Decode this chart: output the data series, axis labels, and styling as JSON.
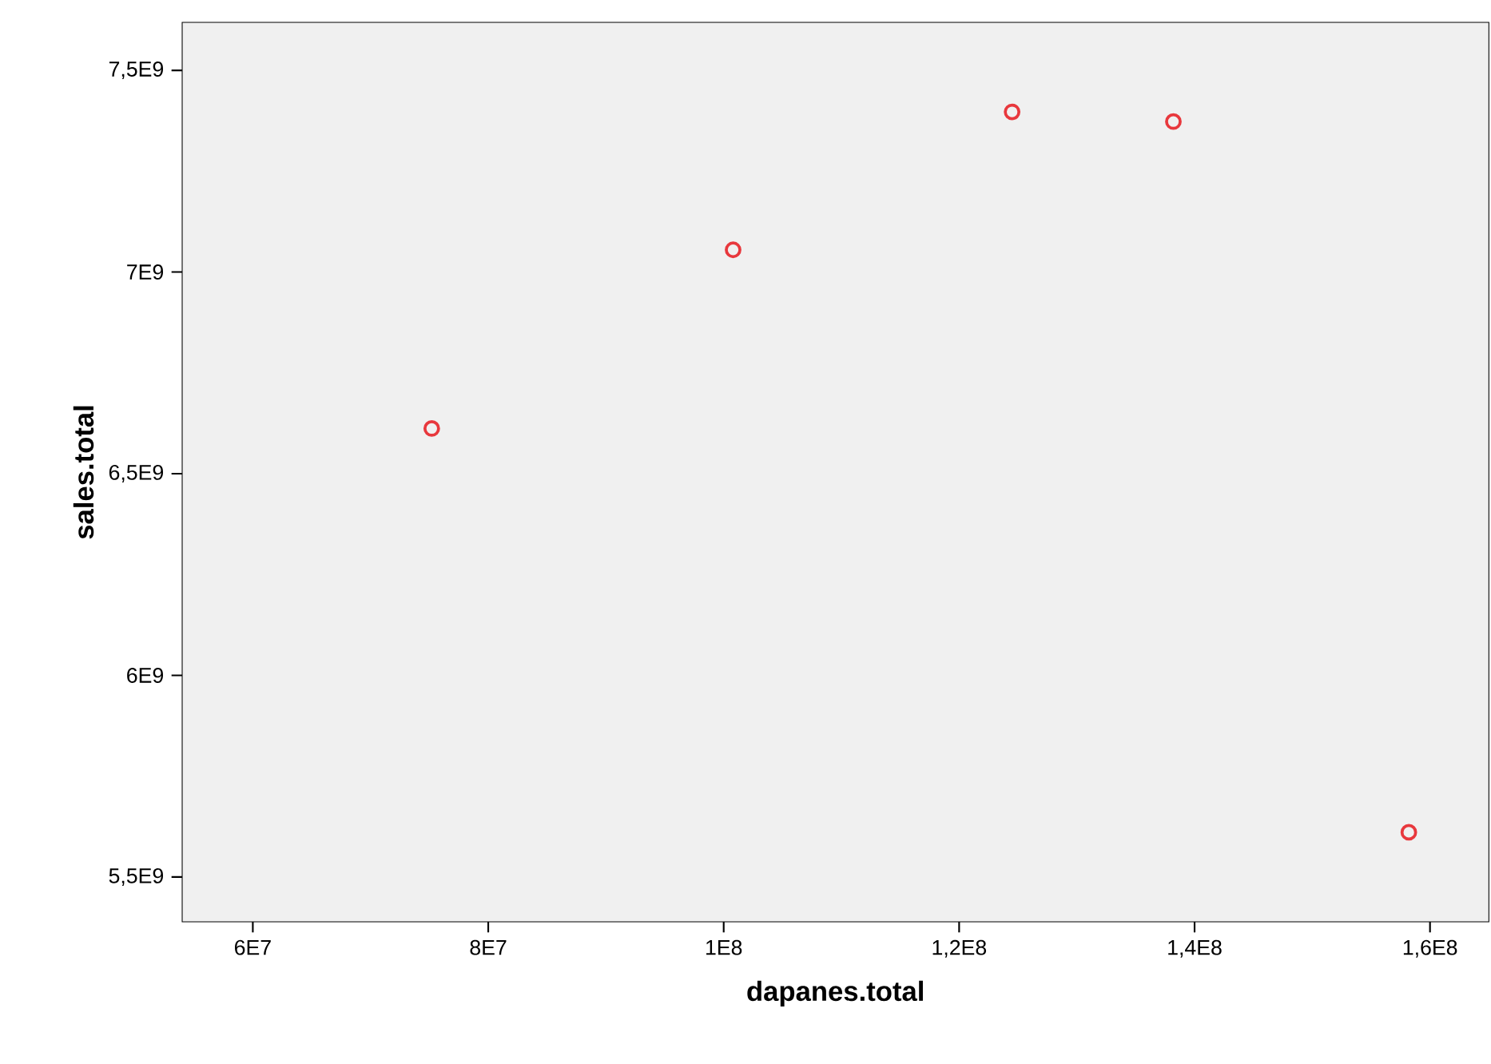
{
  "chart_data": {
    "type": "scatter",
    "xlabel": "dapanes.total",
    "ylabel": "sales.total",
    "marker": "circle",
    "x": [
      75200000,
      100800000,
      124500000,
      138200000,
      158200000
    ],
    "series": [
      {
        "color": "#e8383d",
        "values": [
          6612000000,
          7055000000,
          7397000000,
          7373000000,
          5611000000
        ]
      }
    ],
    "xlim": [
      54000000,
      165000000
    ],
    "ylim": [
      5389000000,
      7619000000
    ],
    "xticks": [
      {
        "value": 60000000,
        "label": "6E7"
      },
      {
        "value": 80000000,
        "label": "8E7"
      },
      {
        "value": 100000000,
        "label": "1E8"
      },
      {
        "value": 120000000,
        "label": "1,2E8"
      },
      {
        "value": 140000000,
        "label": "1,4E8"
      },
      {
        "value": 160000000,
        "label": "1,6E8"
      }
    ],
    "yticks": [
      {
        "value": 5500000000,
        "label": "5,5E9"
      },
      {
        "value": 6000000000,
        "label": "6E9"
      },
      {
        "value": 6500000000,
        "label": "6,5E9"
      },
      {
        "value": 7000000000,
        "label": "7E9"
      },
      {
        "value": 7500000000,
        "label": "7,5E9"
      }
    ]
  }
}
